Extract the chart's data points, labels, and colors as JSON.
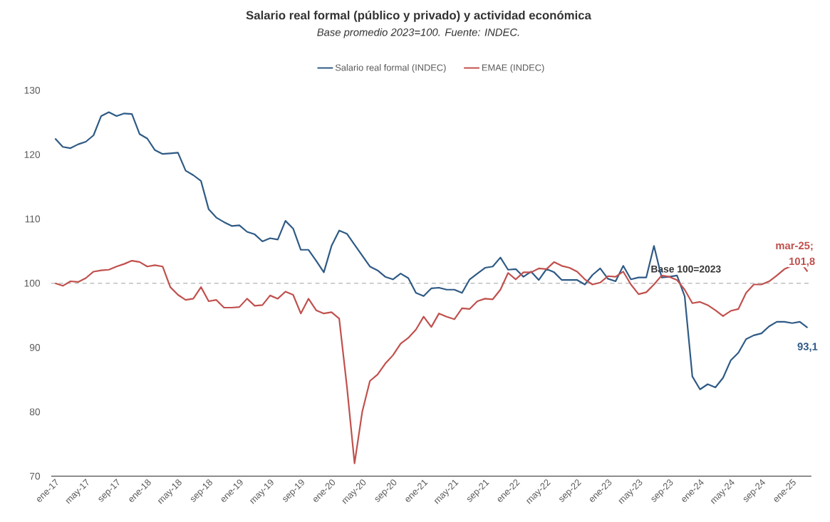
{
  "chart_data": {
    "type": "line",
    "title": "Salario real formal (público y privado) y actividad económica",
    "subtitle": "Base promedio 2023=100. Fuente: INDEC.",
    "categories": [
      "ene-17",
      null,
      null,
      null,
      "may-17",
      null,
      null,
      null,
      "sep-17",
      null,
      null,
      null,
      "ene-18",
      null,
      null,
      null,
      "may-18",
      null,
      null,
      null,
      "sep-18",
      null,
      null,
      null,
      "ene-19",
      null,
      null,
      null,
      "may-19",
      null,
      null,
      null,
      "sep-19",
      null,
      null,
      null,
      "ene-20",
      null,
      null,
      null,
      "may-20",
      null,
      null,
      null,
      "sep-20",
      null,
      null,
      null,
      "ene-21",
      null,
      null,
      null,
      "may-21",
      null,
      null,
      null,
      "sep-21",
      null,
      null,
      null,
      "ene-22",
      null,
      null,
      null,
      "may-22",
      null,
      null,
      null,
      "sep-22",
      null,
      null,
      null,
      "ene-23",
      null,
      null,
      null,
      "may-23",
      null,
      null,
      null,
      "sep-23",
      null,
      null,
      null,
      "ene-24",
      null,
      null,
      null,
      "may-24",
      null,
      null,
      null,
      "sep-24",
      null,
      null,
      null,
      "ene-25",
      null,
      null
    ],
    "series": [
      {
        "name": "Salario real formal (INDEC)",
        "color": "#2e5a85",
        "values": [
          122.5,
          121.2,
          121.0,
          121.6,
          122.0,
          123.0,
          126.0,
          126.6,
          126.0,
          126.4,
          126.3,
          123.2,
          122.5,
          120.7,
          120.1,
          120.2,
          120.3,
          117.5,
          116.8,
          115.9,
          111.5,
          110.2,
          109.5,
          108.9,
          109.0,
          108.0,
          107.6,
          106.5,
          107.0,
          106.8,
          109.7,
          108.5,
          105.2,
          105.2,
          103.5,
          101.7,
          105.8,
          108.2,
          107.7,
          106.0,
          104.3,
          102.6,
          102.0,
          101.0,
          100.6,
          101.5,
          100.8,
          98.5,
          98.0,
          99.2,
          99.3,
          99.0,
          99.0,
          98.5,
          100.6,
          101.5,
          102.4,
          102.6,
          104.0,
          102.1,
          102.2,
          101.0,
          101.8,
          100.5,
          102.2,
          101.7,
          100.5,
          100.5,
          100.5,
          99.8,
          101.3,
          102.3,
          100.7,
          100.3,
          102.7,
          100.6,
          100.9,
          100.9,
          105.8,
          100.9,
          101.0,
          101.2,
          98.0,
          85.5,
          83.5,
          84.3,
          83.8,
          85.3,
          88.0,
          89.2,
          91.3,
          91.9,
          92.2,
          93.3,
          94.0,
          94.0,
          93.8,
          94.0,
          93.1
        ],
        "value_labels": [
          null,
          null,
          null,
          null,
          null,
          null,
          null,
          null,
          null,
          null,
          null,
          null,
          null,
          null,
          null,
          null,
          null,
          null,
          null,
          null,
          null,
          null,
          null,
          null,
          null,
          null,
          null,
          null,
          null,
          null,
          null,
          null,
          null,
          null,
          null,
          null,
          null,
          null,
          null,
          null,
          null,
          null,
          null,
          null,
          null,
          null,
          null,
          null,
          null,
          null,
          null,
          null,
          null,
          null,
          null,
          null,
          null,
          null,
          null,
          null,
          null,
          null,
          null,
          null,
          null,
          null,
          null,
          null,
          null,
          null,
          null,
          null,
          null,
          null,
          null,
          null,
          null,
          null,
          null,
          null,
          null,
          null,
          null,
          null,
          null,
          null,
          null,
          null,
          null,
          null,
          null,
          null,
          null,
          null,
          null,
          null,
          null,
          null,
          "93,1"
        ]
      },
      {
        "name": "EMAE (INDEC)",
        "color": "#c0504d",
        "values": [
          100.0,
          99.6,
          100.3,
          100.2,
          100.8,
          101.8,
          102.0,
          102.1,
          102.6,
          103.0,
          103.5,
          103.3,
          102.6,
          102.8,
          102.6,
          99.4,
          98.2,
          97.4,
          97.6,
          99.4,
          97.2,
          97.4,
          96.2,
          96.2,
          96.3,
          97.6,
          96.5,
          96.6,
          98.1,
          97.6,
          98.7,
          98.2,
          95.3,
          97.6,
          95.8,
          95.3,
          95.5,
          94.5,
          84.0,
          72.0,
          80.0,
          84.8,
          85.8,
          87.5,
          88.8,
          90.6,
          91.5,
          92.8,
          94.8,
          93.2,
          95.3,
          94.8,
          94.4,
          96.1,
          96.0,
          97.2,
          97.6,
          97.5,
          99.0,
          101.6,
          100.6,
          101.7,
          101.7,
          102.3,
          102.2,
          103.3,
          102.7,
          102.4,
          101.8,
          100.6,
          99.8,
          100.1,
          101.1,
          101.0,
          101.8,
          99.8,
          98.3,
          98.6,
          99.8,
          101.2,
          101.0,
          100.5,
          99.0,
          96.9,
          97.1,
          96.6,
          95.8,
          94.9,
          95.7,
          96.0,
          98.5,
          99.8,
          99.8,
          100.3,
          101.2,
          102.2,
          102.7,
          103.4,
          101.8
        ],
        "value_labels": [
          null,
          null,
          null,
          null,
          null,
          null,
          null,
          null,
          null,
          null,
          null,
          null,
          null,
          null,
          null,
          null,
          null,
          null,
          null,
          null,
          null,
          null,
          null,
          null,
          null,
          null,
          null,
          null,
          null,
          null,
          null,
          null,
          null,
          null,
          null,
          null,
          null,
          null,
          null,
          null,
          null,
          null,
          null,
          null,
          null,
          null,
          null,
          null,
          null,
          null,
          null,
          null,
          null,
          null,
          null,
          null,
          null,
          null,
          null,
          null,
          null,
          null,
          null,
          null,
          null,
          null,
          null,
          null,
          null,
          null,
          null,
          null,
          null,
          null,
          null,
          null,
          null,
          null,
          null,
          null,
          null,
          null,
          null,
          null,
          null,
          null,
          null,
          null,
          null,
          null,
          null,
          null,
          null,
          null,
          null,
          null,
          null,
          null,
          "101,8"
        ]
      }
    ],
    "ylim": [
      70,
      130
    ],
    "yticks": [
      70,
      80,
      90,
      100,
      110,
      120,
      130
    ],
    "legend": "top",
    "ref_lines": [
      {
        "axis": "y",
        "value": 100,
        "label": "Base 100=2023",
        "color": "#bfbfbf",
        "line_style": "dashed"
      }
    ],
    "annotations": [
      "mar-25;"
    ]
  }
}
